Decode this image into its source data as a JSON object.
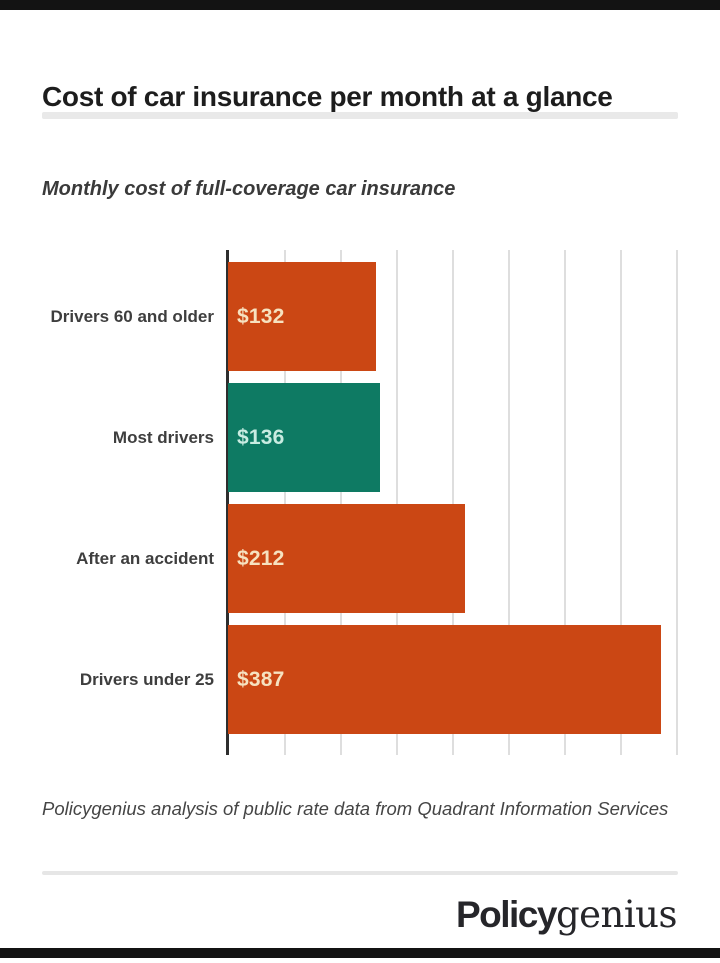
{
  "header": {
    "title": "Cost of car insurance per month at a glance"
  },
  "chart_data": {
    "type": "bar",
    "orientation": "horizontal",
    "title": "Monthly cost of full-coverage car insurance",
    "categories": [
      "Drivers 60 and older",
      "Most drivers",
      "After an accident",
      "Drivers under 25"
    ],
    "values": [
      132,
      136,
      212,
      387
    ],
    "value_labels": [
      "$132",
      "$136",
      "$212",
      "$387"
    ],
    "bar_colors": [
      "#cb4714",
      "#0e7a63",
      "#cb4714",
      "#cb4714"
    ],
    "value_text_colors": [
      "#f6e2c0",
      "#c9ece1",
      "#f6e2c0",
      "#f6e2c0"
    ],
    "xlabel": "",
    "ylabel": "",
    "xlim": [
      0,
      404
    ],
    "gridlines": [
      50,
      100,
      150,
      200,
      250,
      300,
      350,
      400
    ],
    "grid": true,
    "legend": false,
    "axis_color": "#2e2e2e",
    "gridline_color": "#dedede"
  },
  "footer": {
    "source_note": "Policygenius analysis of public rate data from Quadrant Information Services",
    "brand": {
      "bold_part": "Policy",
      "serif_part": "genius"
    }
  },
  "colors": {
    "accent_orange": "#cb4714",
    "accent_teal": "#0e7a63",
    "edge_bar": "#131313",
    "divider": "#e9e9e9",
    "text_dark": "#1d1d1d",
    "text_gray": "#3e3e3e"
  }
}
